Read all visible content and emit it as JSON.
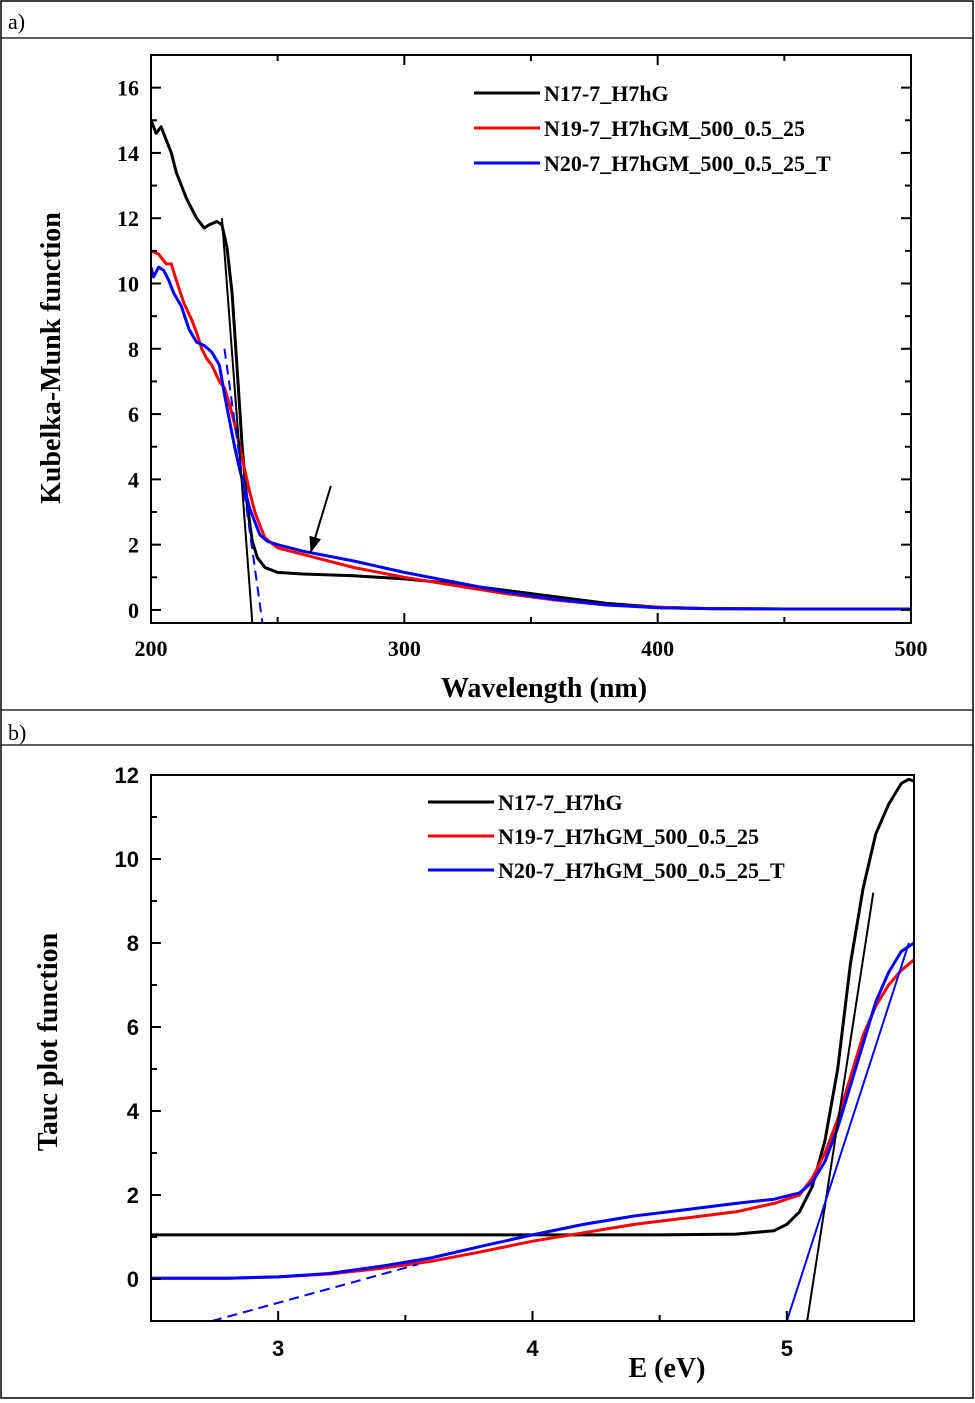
{
  "chart_data": [
    {
      "panel_label": "a)",
      "type": "line",
      "xlabel": "Wavelength (nm)",
      "ylabel": "Kubelka-Munk function",
      "xlim": [
        200,
        500
      ],
      "ylim": [
        -0.4,
        17
      ],
      "xticks": [
        200,
        300,
        400,
        500
      ],
      "yticks": [
        0,
        2,
        4,
        6,
        8,
        10,
        12,
        14,
        16
      ],
      "legend": "top-right",
      "series": [
        {
          "name": "N17-7_H7hG",
          "color": "#000000",
          "x": [
            200,
            202,
            204,
            206,
            208,
            210,
            214,
            218,
            221,
            223,
            226,
            228,
            230,
            232,
            234,
            236,
            238,
            240,
            242,
            245,
            250,
            260,
            280,
            300,
            320,
            340,
            360,
            380,
            400,
            420,
            450,
            500
          ],
          "y": [
            15.0,
            14.6,
            14.8,
            14.4,
            14.0,
            13.4,
            12.6,
            12.0,
            11.7,
            11.8,
            11.9,
            11.8,
            11.1,
            9.7,
            7.4,
            5.0,
            3.2,
            2.1,
            1.6,
            1.3,
            1.15,
            1.1,
            1.05,
            0.95,
            0.8,
            0.6,
            0.4,
            0.2,
            0.08,
            0.04,
            0.03,
            0.03
          ]
        },
        {
          "name": "N19-7_H7hGM_500_0.5_25",
          "color": "#ff0000",
          "x": [
            200,
            203,
            206,
            208,
            210,
            213,
            216,
            218,
            220,
            222,
            224,
            227,
            229,
            231,
            233,
            235,
            237,
            239,
            241,
            243,
            245,
            250,
            260,
            280,
            300,
            320,
            340,
            360,
            380,
            400,
            420,
            450,
            500
          ],
          "y": [
            11.0,
            10.9,
            10.6,
            10.6,
            10.1,
            9.4,
            8.9,
            8.5,
            8.0,
            7.7,
            7.5,
            7.0,
            6.8,
            6.3,
            5.7,
            5.0,
            4.3,
            3.6,
            3.0,
            2.6,
            2.2,
            1.9,
            1.7,
            1.3,
            1.0,
            0.75,
            0.5,
            0.3,
            0.15,
            0.08,
            0.04,
            0.03,
            0.03
          ]
        },
        {
          "name": "N20-7_H7hGM_500_0.5_25_T",
          "color": "#0000ff",
          "x": [
            200,
            201,
            203,
            205,
            207,
            209,
            212,
            215,
            218,
            221,
            224,
            227,
            229,
            231,
            233,
            235,
            237,
            239,
            241,
            243,
            246,
            250,
            260,
            280,
            300,
            320,
            340,
            360,
            380,
            400,
            420,
            450,
            500
          ],
          "y": [
            10.5,
            10.2,
            10.5,
            10.4,
            10.1,
            9.7,
            9.3,
            8.6,
            8.2,
            8.1,
            7.9,
            7.5,
            6.6,
            5.8,
            5.0,
            4.3,
            3.7,
            3.1,
            2.7,
            2.3,
            2.1,
            2.0,
            1.8,
            1.5,
            1.15,
            0.85,
            0.55,
            0.32,
            0.15,
            0.07,
            0.04,
            0.03,
            0.03
          ]
        }
      ],
      "extrapolation_lines": [
        {
          "color": "#000000",
          "style": "solid",
          "x": [
            228,
            240
          ],
          "y": [
            12.0,
            -0.4
          ]
        },
        {
          "color": "#0000ff",
          "style": "dashed",
          "x": [
            229,
            244
          ],
          "y": [
            8.0,
            -0.4
          ]
        }
      ],
      "annotations": [
        {
          "type": "arrow",
          "from": [
            271,
            3.8
          ],
          "to": [
            263,
            1.75
          ]
        }
      ]
    },
    {
      "panel_label": "b)",
      "type": "line",
      "xlabel": "E (eV)",
      "ylabel": "Tauc plot function",
      "xlim": [
        2.5,
        5.5
      ],
      "ylim": [
        -1,
        12
      ],
      "xticks": [
        3,
        4,
        5
      ],
      "yticks": [
        0,
        2,
        4,
        6,
        8,
        10,
        12
      ],
      "legend": "top-right",
      "series": [
        {
          "name": "N17-7_H7hG",
          "color": "#000000",
          "x": [
            2.5,
            3.0,
            3.5,
            4.0,
            4.5,
            4.8,
            4.95,
            5.0,
            5.05,
            5.1,
            5.15,
            5.2,
            5.25,
            5.3,
            5.35,
            5.4,
            5.45,
            5.48,
            5.5
          ],
          "y": [
            1.05,
            1.05,
            1.05,
            1.05,
            1.05,
            1.07,
            1.15,
            1.3,
            1.6,
            2.2,
            3.3,
            5.0,
            7.5,
            9.3,
            10.6,
            11.3,
            11.8,
            11.9,
            11.85
          ]
        },
        {
          "name": "N19-7_H7hGM_500_0.5_25",
          "color": "#ff0000",
          "x": [
            2.5,
            2.8,
            3.0,
            3.2,
            3.4,
            3.6,
            3.8,
            4.0,
            4.2,
            4.4,
            4.6,
            4.8,
            4.95,
            5.05,
            5.1,
            5.15,
            5.2,
            5.25,
            5.3,
            5.35,
            5.4,
            5.45,
            5.5
          ],
          "y": [
            0.02,
            0.02,
            0.05,
            0.12,
            0.25,
            0.42,
            0.65,
            0.9,
            1.1,
            1.3,
            1.45,
            1.6,
            1.8,
            2.0,
            2.4,
            3.0,
            3.8,
            4.8,
            5.8,
            6.5,
            7.0,
            7.35,
            7.6
          ]
        },
        {
          "name": "N20-7_H7hGM_500_0.5_25_T",
          "color": "#0000ff",
          "x": [
            2.5,
            2.8,
            3.0,
            3.2,
            3.4,
            3.6,
            3.8,
            4.0,
            4.2,
            4.4,
            4.6,
            4.8,
            4.95,
            5.05,
            5.1,
            5.15,
            5.2,
            5.25,
            5.3,
            5.35,
            5.4,
            5.45,
            5.5
          ],
          "y": [
            0.02,
            0.02,
            0.05,
            0.13,
            0.3,
            0.5,
            0.78,
            1.05,
            1.3,
            1.5,
            1.65,
            1.8,
            1.9,
            2.05,
            2.3,
            2.8,
            3.6,
            4.6,
            5.6,
            6.6,
            7.3,
            7.8,
            8.0
          ]
        }
      ],
      "extrapolation_lines": [
        {
          "color": "#000000",
          "style": "solid",
          "x": [
            5.08,
            5.34
          ],
          "y": [
            -1.0,
            9.2
          ]
        },
        {
          "color": "#0000ff",
          "style": "dashed",
          "x": [
            2.74,
            3.55
          ],
          "y": [
            -1.0,
            0.35
          ]
        },
        {
          "color": "#0000ff",
          "style": "solid",
          "x": [
            5.0,
            5.48
          ],
          "y": [
            -1.0,
            8.0
          ]
        }
      ]
    }
  ]
}
